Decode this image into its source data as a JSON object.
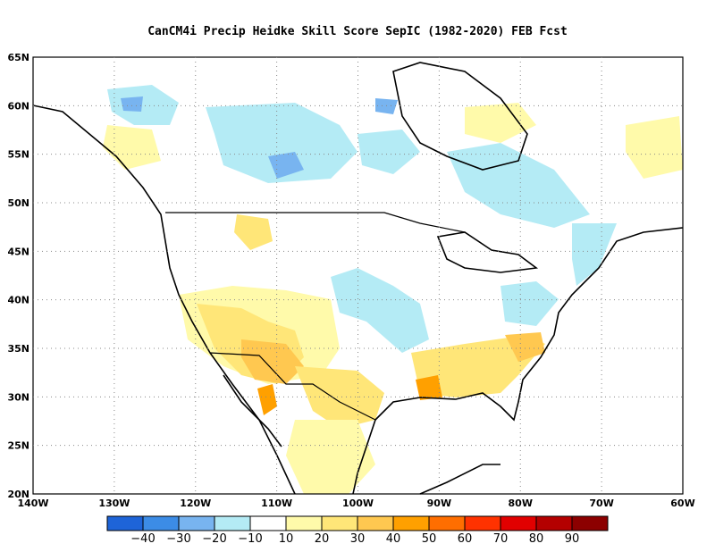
{
  "title": "CanCM4i Precip Heidke Skill Score SepIC (1982-2020) FEB Fcst",
  "map": {
    "lon_range": [
      -140,
      -60
    ],
    "lat_range": [
      20,
      65
    ],
    "lat_ticks": [
      "65N",
      "60N",
      "55N",
      "50N",
      "45N",
      "40N",
      "35N",
      "30N",
      "25N",
      "20N"
    ],
    "lon_ticks": [
      "140W",
      "130W",
      "120W",
      "110W",
      "100W",
      "90W",
      "80W",
      "70W",
      "60W"
    ],
    "gridlines": "dotted"
  },
  "colorbar": {
    "labels": [
      "−40",
      "−30",
      "−20",
      "−10",
      "10",
      "20",
      "30",
      "40",
      "50",
      "60",
      "70",
      "80",
      "90"
    ],
    "colors": [
      "#1e64d8",
      "#3c8ce6",
      "#78b4f0",
      "#b4ebf5",
      "#ffffff",
      "#fffaaa",
      "#ffe678",
      "#ffc850",
      "#ffa000",
      "#ff6e00",
      "#ff3200",
      "#e10000",
      "#b40000",
      "#8c0000"
    ]
  },
  "regions": [
    {
      "label": "southwest positive",
      "color": "#ffc850"
    },
    {
      "label": "texas positive",
      "color": "#ffe678"
    },
    {
      "label": "canada negative",
      "color": "#b4ebf5"
    },
    {
      "label": "gulf positive",
      "color": "#ffa000"
    }
  ]
}
